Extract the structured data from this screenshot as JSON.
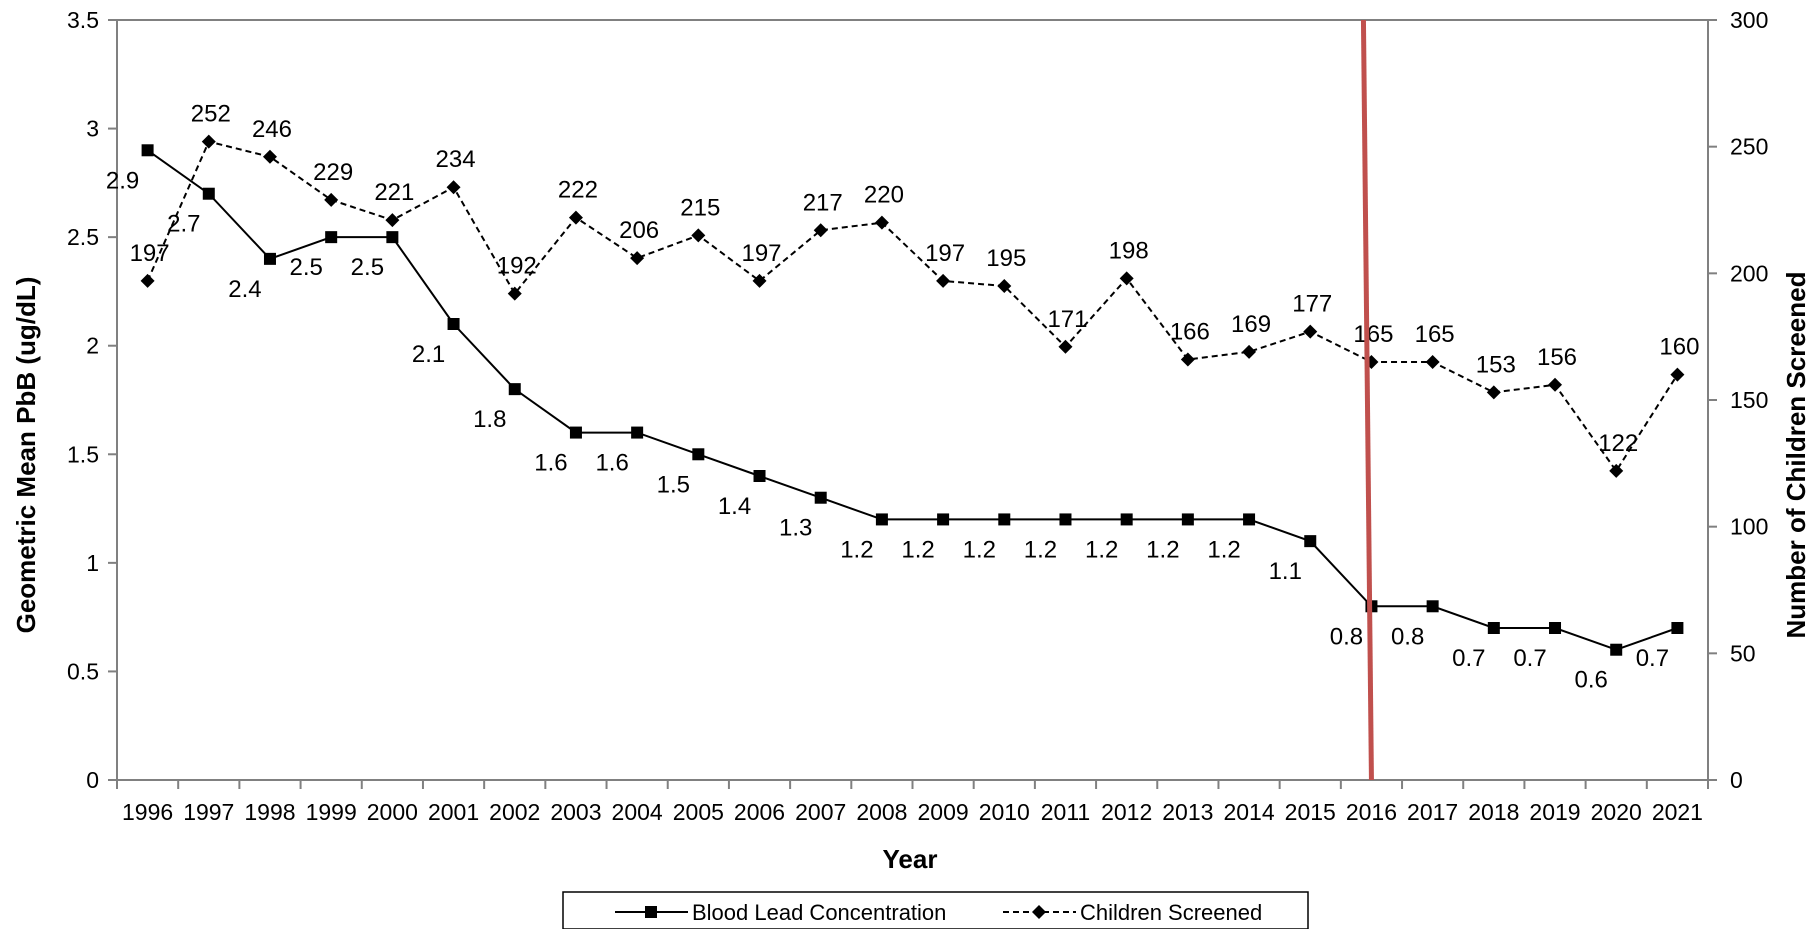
{
  "chart_data": {
    "type": "line",
    "title": "",
    "xlabel": "Year",
    "ylabel": "Geometric Mean PbB (ug/dL)",
    "y2label": "Number of Children Screened",
    "x": [
      "1996",
      "1997",
      "1998",
      "1999",
      "2000",
      "2001",
      "2002",
      "2003",
      "2004",
      "2005",
      "2006",
      "2007",
      "2008",
      "2009",
      "2010",
      "2011",
      "2012",
      "2013",
      "2014",
      "2015",
      "2016",
      "2017",
      "2018",
      "2019",
      "2020",
      "2021"
    ],
    "ylim": [
      0,
      3.5
    ],
    "yticks": [
      "0",
      "0.5",
      "1",
      "1.5",
      "2",
      "2.5",
      "3",
      "3.5"
    ],
    "y2lim": [
      0,
      300
    ],
    "y2ticks": [
      "0",
      "50",
      "100",
      "150",
      "200",
      "250",
      "300"
    ],
    "grid": false,
    "legend_position": "bottom",
    "series": [
      {
        "name": "Blood Lead Concentration",
        "axis": "left",
        "marker": "square",
        "line_style": "solid",
        "values": [
          2.9,
          2.7,
          2.4,
          2.5,
          2.5,
          2.1,
          1.8,
          1.6,
          1.6,
          1.5,
          1.4,
          1.3,
          1.2,
          1.2,
          1.2,
          1.2,
          1.2,
          1.2,
          1.2,
          1.1,
          0.8,
          0.8,
          0.7,
          0.7,
          0.6,
          0.7
        ],
        "labels": [
          "2.9",
          "2.7",
          "2.4",
          "2.5",
          "2.5",
          "2.1",
          "1.8",
          "1.6",
          "1.6",
          "1.5",
          "1.4",
          "1.3",
          "1.2",
          "1.2",
          "1.2",
          "1.2",
          "1.2",
          "1.2",
          "1.2",
          "1.1",
          "0.8",
          "0.8",
          "0.7",
          "0.7",
          "0.6",
          "0.7"
        ]
      },
      {
        "name": "Children Screened",
        "axis": "right",
        "marker": "diamond",
        "line_style": "dashed",
        "values": [
          197,
          252,
          246,
          229,
          221,
          234,
          192,
          222,
          206,
          215,
          197,
          217,
          220,
          197,
          195,
          171,
          198,
          166,
          169,
          177,
          165,
          165,
          153,
          156,
          122,
          160
        ],
        "labels": [
          "197",
          "252",
          "246",
          "229",
          "221",
          "234",
          "192",
          "222",
          "206",
          "215",
          "197",
          "217",
          "220",
          "197",
          "195",
          "171",
          "198",
          "166",
          "169",
          "177",
          "165",
          "165",
          "153",
          "156",
          "122",
          "160"
        ]
      }
    ],
    "annotation": {
      "type": "vertical-line",
      "x": "2016",
      "color": "#c0504d"
    },
    "colors": {
      "series": "#000000",
      "marker_line": "#c0504d"
    }
  }
}
